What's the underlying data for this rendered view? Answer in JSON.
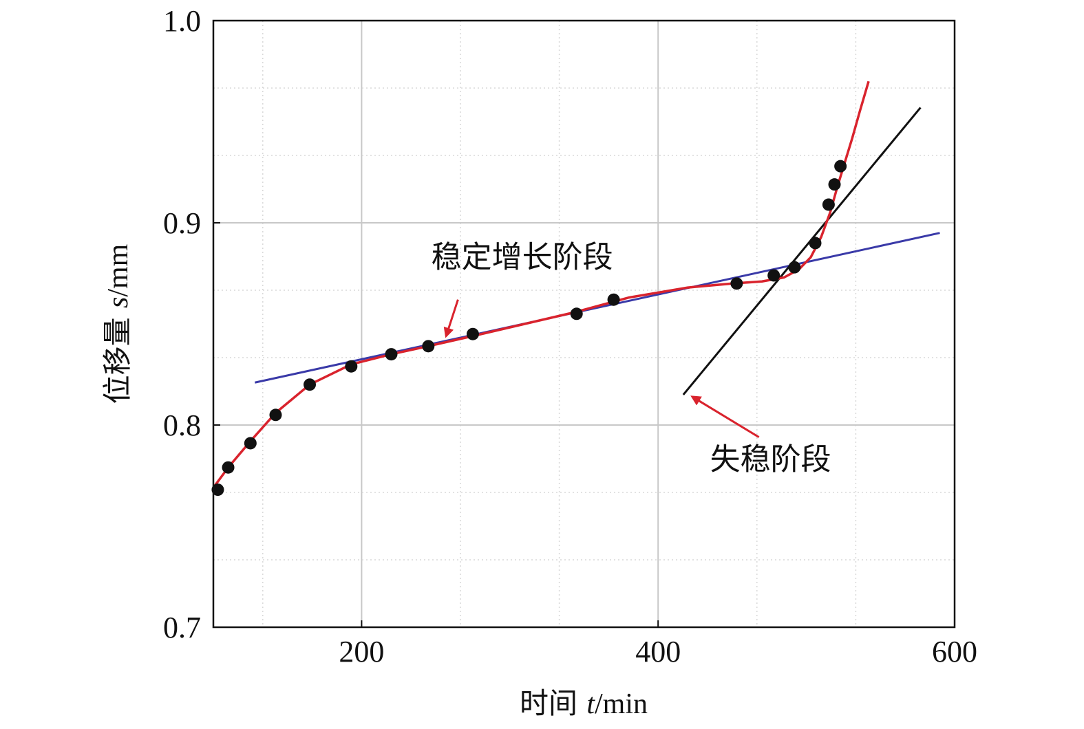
{
  "chart_data": {
    "type": "scatter",
    "xlim": [
      100,
      600
    ],
    "ylim": [
      0.7,
      1.0
    ],
    "x_ticks": [
      200,
      400,
      600
    ],
    "y_ticks": [
      0.7,
      0.8,
      0.9,
      1.0
    ],
    "x_tick_labels": [
      "200",
      "400",
      "600"
    ],
    "y_tick_labels": [
      "0.7",
      "0.8",
      "0.9",
      "1.0"
    ],
    "xlabel_prefix": "时间 ",
    "xlabel_var": "t",
    "xlabel_unit": "/min",
    "ylabel_prefix": "位移量 ",
    "ylabel_var": "s",
    "ylabel_unit": "/mm",
    "grid": true,
    "colors": {
      "points": "#111111",
      "fit_curve": "#d9232d",
      "stable_line": "#3a3aa8",
      "unstable_line": "#111111",
      "arrow": "#d9232d",
      "grid_major": "#c8c8c8",
      "grid_minor": "#d8d8d8"
    },
    "series": [
      {
        "kind": "scatter",
        "x": [
          103,
          110,
          125,
          142,
          165,
          193,
          220,
          245,
          275,
          345,
          370,
          453,
          478,
          492,
          506,
          515,
          519,
          523
        ],
        "y": [
          0.768,
          0.779,
          0.791,
          0.805,
          0.82,
          0.829,
          0.835,
          0.839,
          0.845,
          0.855,
          0.862,
          0.87,
          0.874,
          0.878,
          0.89,
          0.909,
          0.919,
          0.928
        ]
      },
      {
        "kind": "fit_curve",
        "x": [
          101,
          110,
          125,
          142,
          165,
          193,
          220,
          245,
          275,
          310,
          345,
          380,
          420,
          450,
          470,
          485,
          495,
          503,
          510,
          516,
          521,
          526,
          531,
          536,
          542
        ],
        "y": [
          0.77,
          0.779,
          0.792,
          0.806,
          0.82,
          0.83,
          0.835,
          0.839,
          0.844,
          0.85,
          0.856,
          0.863,
          0.868,
          0.87,
          0.871,
          0.873,
          0.877,
          0.883,
          0.893,
          0.905,
          0.918,
          0.93,
          0.942,
          0.955,
          0.97
        ]
      },
      {
        "kind": "stable_trend_line",
        "x": [
          128,
          590
        ],
        "y": [
          0.821,
          0.895
        ]
      },
      {
        "kind": "unstable_trend_line",
        "x": [
          417,
          577
        ],
        "y": [
          0.815,
          0.957
        ]
      }
    ],
    "annotations": [
      {
        "text": "稳定增长阶段",
        "text_x": 247,
        "text_y": 0.878,
        "arrow_from": [
          265,
          0.862
        ],
        "arrow_to": [
          257,
          0.844
        ]
      },
      {
        "text": "失稳阶段",
        "text_x": 435,
        "text_y": 0.778,
        "arrow_from": [
          468,
          0.794
        ],
        "arrow_to": [
          423,
          0.814
        ]
      }
    ]
  }
}
